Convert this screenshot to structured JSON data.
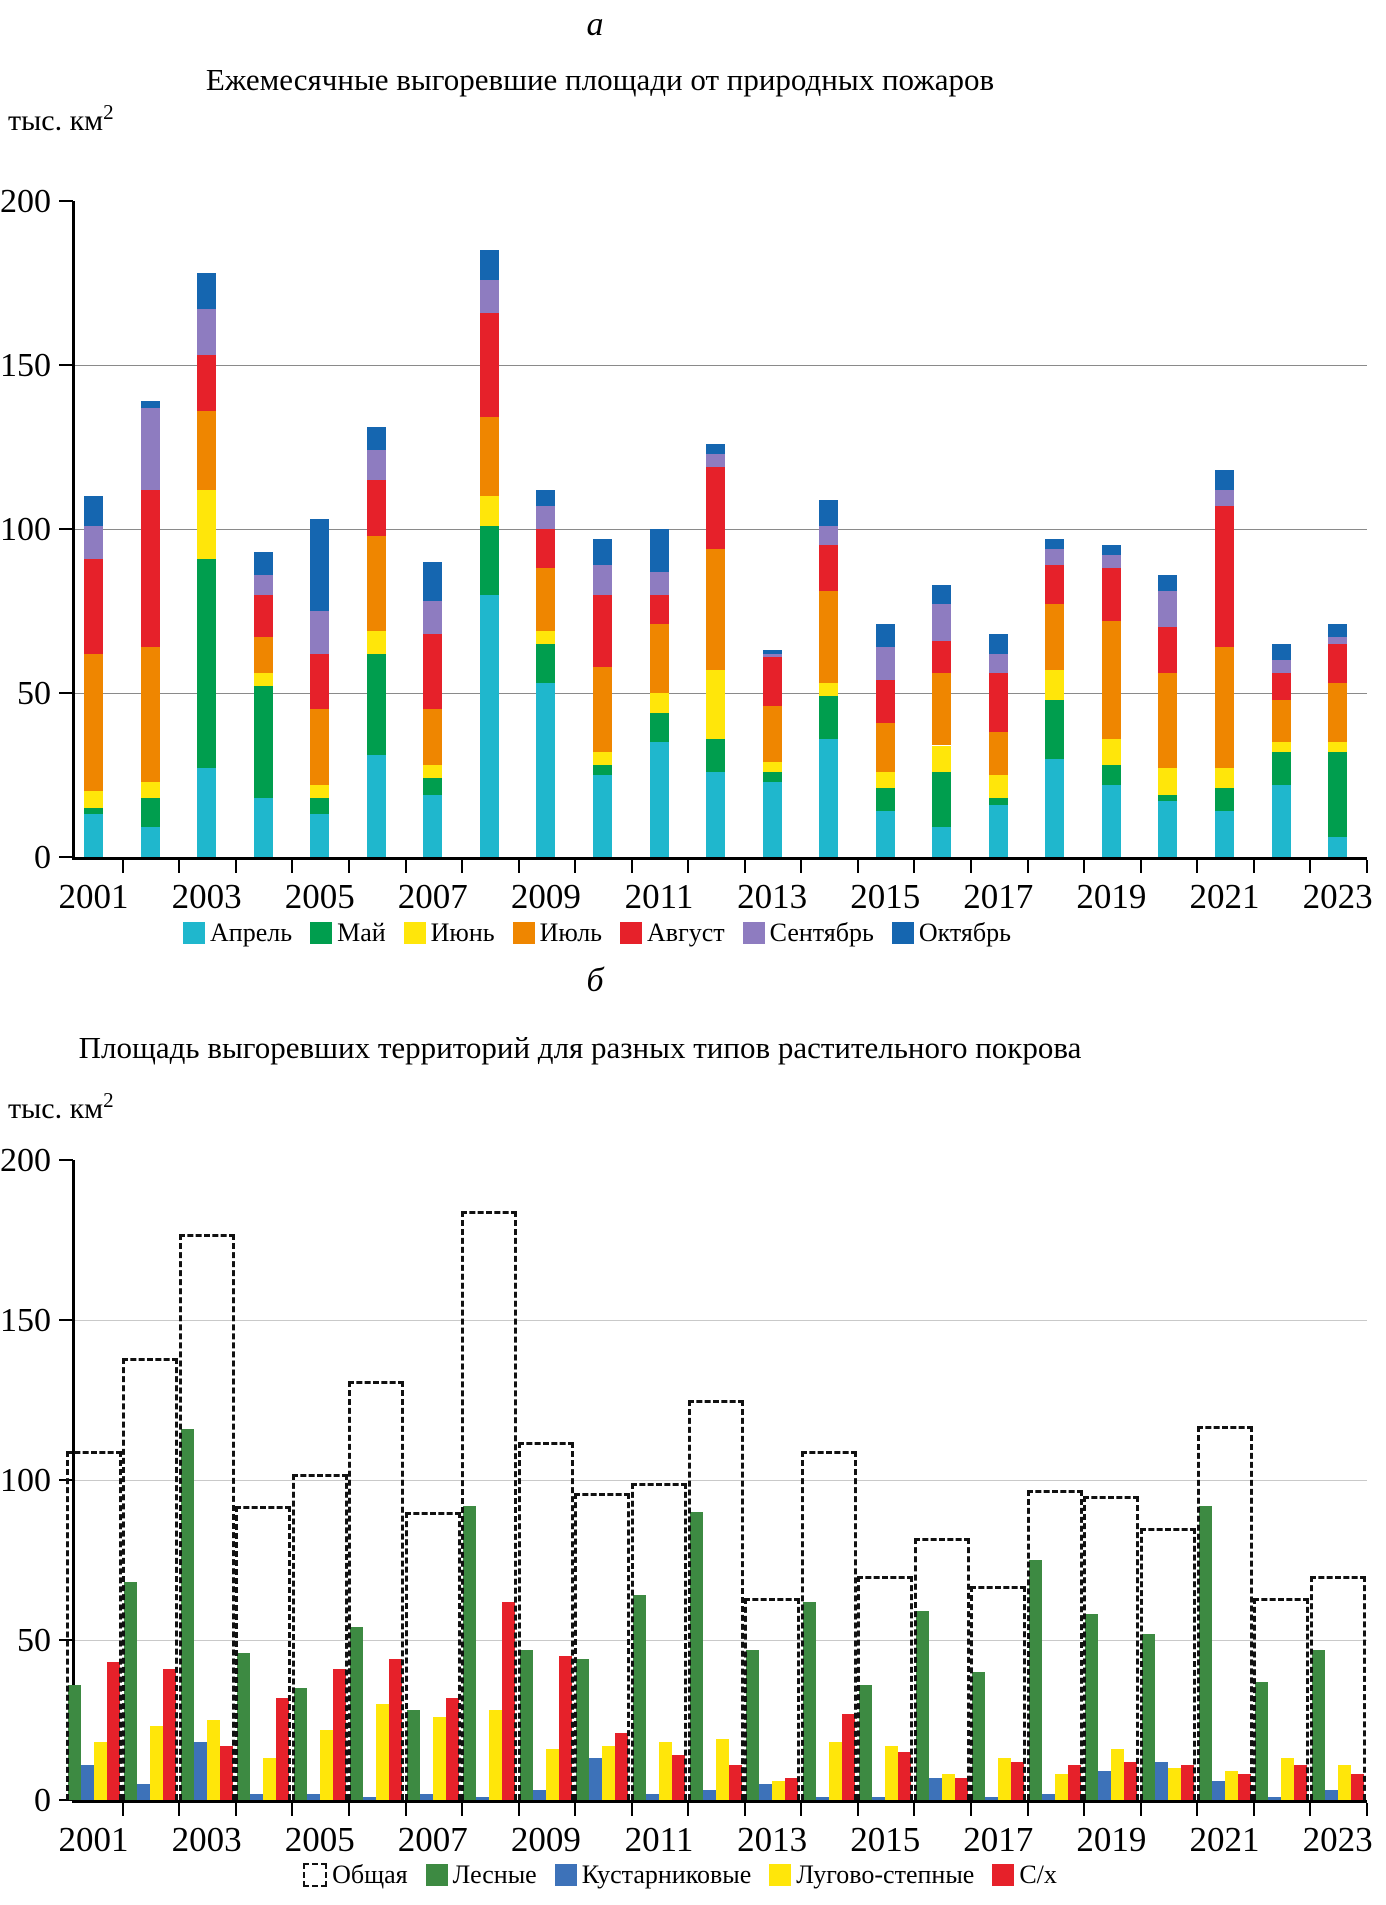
{
  "panel_a": {
    "panel_label": "а",
    "title": "Ежемесячные выгоревшие площади от природных пожаров",
    "y_unit_base": "тыс. км",
    "y_unit_sup": "2",
    "chart_data": {
      "type": "stacked-bar",
      "categories": [
        2001,
        2002,
        2003,
        2004,
        2005,
        2006,
        2007,
        2008,
        2009,
        2010,
        2011,
        2012,
        2013,
        2014,
        2015,
        2016,
        2017,
        2018,
        2019,
        2020,
        2021,
        2022,
        2023
      ],
      "x_tick_labels": [
        "2001",
        "2003",
        "2005",
        "2007",
        "2009",
        "2011",
        "2013",
        "2015",
        "2017",
        "2019",
        "2021",
        "2023"
      ],
      "ylim": [
        0,
        200
      ],
      "yticks": [
        0,
        50,
        100,
        150,
        200
      ],
      "grid": true,
      "legend_position": "bottom",
      "series": [
        {
          "name": "Апрель",
          "color": "#1fb7cd",
          "values": [
            13,
            9,
            27,
            18,
            13,
            31,
            19,
            80,
            53,
            25,
            35,
            26,
            23,
            36,
            14,
            9,
            16,
            30,
            22,
            17,
            14,
            22,
            6
          ]
        },
        {
          "name": "Май",
          "color": "#009e4e",
          "values": [
            2,
            9,
            64,
            34,
            5,
            31,
            5,
            21,
            12,
            3,
            9,
            10,
            3,
            13,
            7,
            17,
            2,
            18,
            6,
            2,
            7,
            10,
            26
          ]
        },
        {
          "name": "Июнь",
          "color": "#ffe60a",
          "values": [
            5,
            5,
            21,
            4,
            4,
            7,
            4,
            9,
            4,
            4,
            6,
            21,
            3,
            4,
            5,
            8,
            7,
            9,
            8,
            8,
            6,
            3,
            3
          ]
        },
        {
          "name": "Июль",
          "color": "#ef8600",
          "values": [
            42,
            41,
            24,
            11,
            23,
            29,
            17,
            24,
            19,
            26,
            21,
            37,
            17,
            28,
            15,
            22,
            13,
            20,
            36,
            29,
            37,
            13,
            18
          ]
        },
        {
          "name": "Август",
          "color": "#e6212a",
          "values": [
            29,
            48,
            17,
            13,
            17,
            17,
            23,
            32,
            12,
            22,
            9,
            25,
            15,
            14,
            13,
            10,
            18,
            12,
            16,
            14,
            43,
            8,
            12
          ]
        },
        {
          "name": "Сентябрь",
          "color": "#8e7cc0",
          "values": [
            10,
            25,
            14,
            6,
            13,
            9,
            10,
            10,
            7,
            9,
            7,
            4,
            1,
            6,
            10,
            11,
            6,
            5,
            4,
            11,
            5,
            4,
            2
          ]
        },
        {
          "name": "Октябрь",
          "color": "#1566b0",
          "values": [
            9,
            2,
            11,
            7,
            28,
            7,
            12,
            9,
            5,
            8,
            13,
            3,
            1,
            8,
            7,
            6,
            6,
            3,
            3,
            5,
            6,
            5,
            4
          ]
        }
      ]
    }
  },
  "panel_b": {
    "panel_label": "б",
    "title": "Площадь выгоревших территорий для разных типов растительного покрова",
    "y_unit_base": "тыс. км",
    "y_unit_sup": "2",
    "chart_data": {
      "type": "grouped-bar",
      "categories": [
        2001,
        2002,
        2003,
        2004,
        2005,
        2006,
        2007,
        2008,
        2009,
        2010,
        2011,
        2012,
        2013,
        2014,
        2015,
        2016,
        2017,
        2018,
        2019,
        2020,
        2021,
        2022,
        2023
      ],
      "x_tick_labels": [
        "2001",
        "2003",
        "2005",
        "2007",
        "2009",
        "2011",
        "2013",
        "2015",
        "2017",
        "2019",
        "2021",
        "2023"
      ],
      "ylim": [
        0,
        200
      ],
      "yticks": [
        0,
        50,
        100,
        150,
        200
      ],
      "grid": true,
      "legend_position": "bottom",
      "outline_series": {
        "name": "Общая",
        "color": "#111111",
        "values": [
          109,
          138,
          177,
          92,
          102,
          131,
          90,
          184,
          112,
          96,
          99,
          125,
          63,
          109,
          70,
          82,
          67,
          97,
          95,
          85,
          117,
          63,
          70
        ]
      },
      "series": [
        {
          "name": "Лесные",
          "color": "#3d8a42",
          "values": [
            36,
            68,
            116,
            46,
            35,
            54,
            28,
            92,
            47,
            44,
            64,
            90,
            47,
            62,
            36,
            59,
            40,
            75,
            58,
            52,
            92,
            37,
            47
          ]
        },
        {
          "name": "Кустарниковые",
          "color": "#3d72b9",
          "values": [
            11,
            5,
            18,
            2,
            2,
            1,
            2,
            1,
            3,
            13,
            2,
            3,
            5,
            1,
            1,
            7,
            1,
            2,
            9,
            12,
            6,
            1,
            3
          ]
        },
        {
          "name": "Лугово-степные",
          "color": "#ffe60a",
          "values": [
            18,
            23,
            25,
            13,
            22,
            30,
            26,
            28,
            16,
            17,
            18,
            19,
            6,
            18,
            17,
            8,
            13,
            8,
            16,
            10,
            9,
            13,
            11
          ]
        },
        {
          "name": "С/х",
          "color": "#e6212a",
          "values": [
            43,
            41,
            17,
            32,
            41,
            44,
            32,
            62,
            45,
            21,
            14,
            11,
            7,
            27,
            15,
            7,
            12,
            11,
            12,
            11,
            8,
            11,
            8
          ]
        }
      ]
    }
  }
}
